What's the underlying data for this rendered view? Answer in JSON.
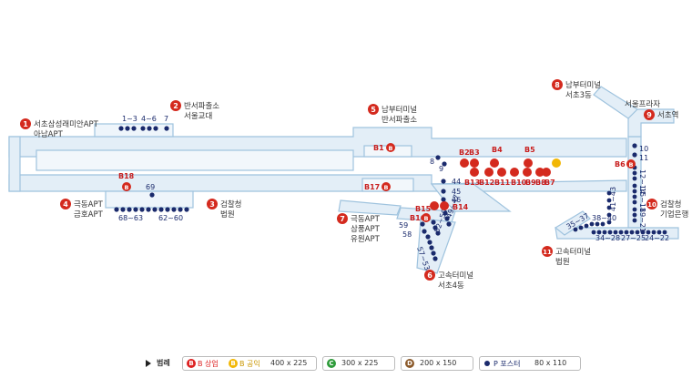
{
  "exits": [
    {
      "n": "1",
      "line1": "서초삼성래미안APT",
      "line2": "아남APT"
    },
    {
      "n": "2",
      "line1": "반서파출소",
      "line2": "서울교대"
    },
    {
      "n": "3",
      "line1": "검찰청",
      "line2": "법원"
    },
    {
      "n": "4",
      "line1": "극동APT",
      "line2": "금호APT"
    },
    {
      "n": "5",
      "line1": "남부터미널",
      "line2": "반서파출소"
    },
    {
      "n": "6",
      "line1": "고속터미널",
      "line2": "서초4동"
    },
    {
      "n": "7",
      "line1": "극동APT",
      "line2": "삼풍APT",
      "line3": "유원APT"
    },
    {
      "n": "8",
      "line1": "남부터미널",
      "line2": "서초3동"
    },
    {
      "n": "9",
      "line1": "서초역",
      "top": "서울프라자"
    },
    {
      "n": "10",
      "line1": "검찰청",
      "line2": "기업은행"
    },
    {
      "n": "11",
      "line1": "고속터미널",
      "line2": "법원"
    }
  ],
  "poster_labels": [
    "1~3",
    "4~6",
    "7",
    "69",
    "68~63",
    "62~60",
    "8",
    "9",
    "44",
    "45",
    "46",
    "59",
    "58",
    "57~53",
    "52~50",
    "49~47",
    "10",
    "11",
    "12~14",
    "15~18",
    "19~21",
    "41~43",
    "38~40",
    "35~37",
    "34~28",
    "27~25",
    "24~22"
  ],
  "board_labels": [
    "B1",
    "B2",
    "B3",
    "B4",
    "B5",
    "B6",
    "B7",
    "B8",
    "B9",
    "B10",
    "B11",
    "B12",
    "B13",
    "B14",
    "B15",
    "B16",
    "B17",
    "B18"
  ],
  "legend": {
    "title": "범례",
    "b_label": "B 상업",
    "y_label": "B 공익",
    "b_size": "400 x 225",
    "c_letter": "C",
    "c_size": "300 x 225",
    "d_letter": "D",
    "d_size": "200 x 150",
    "p_label": "P 포스터",
    "p_size": "80 x 110"
  },
  "colors": {
    "corridor": "#cfe3f1",
    "corridor_stroke": "#a8c8df",
    "exit": "#d42a1e",
    "poster": "#1a2a6c",
    "board": "#d42a1e",
    "public": "#f2b705"
  }
}
